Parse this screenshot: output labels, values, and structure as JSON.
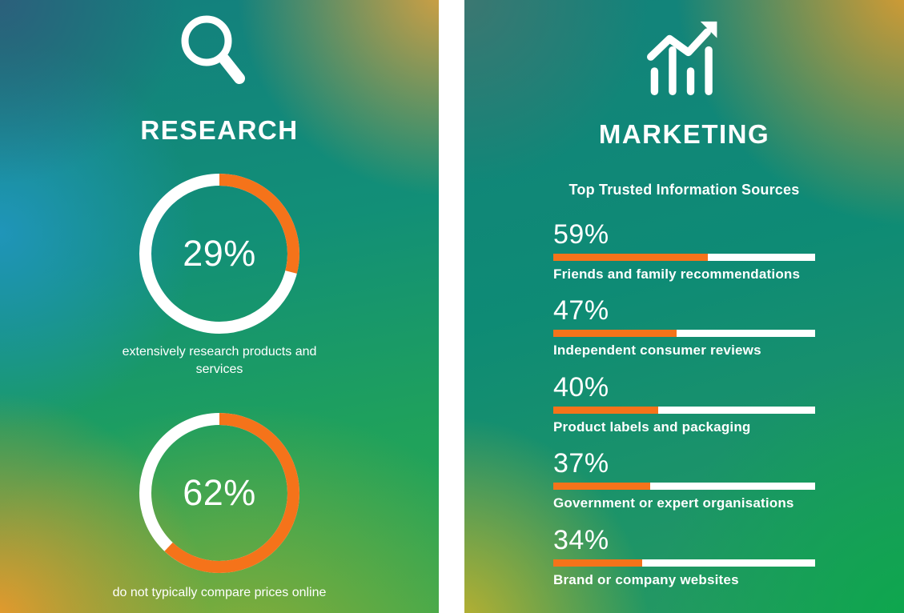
{
  "colors": {
    "orange": "#F5731A",
    "bar_track": "#FFFFFF",
    "text": "#FFFFFF"
  },
  "research_panel": {
    "icon": "magnifier-icon",
    "title": "RESEARCH",
    "donuts": [
      {
        "label": "29%",
        "value": 29,
        "caption": "extensively research products and services"
      },
      {
        "label": "62%",
        "value": 62,
        "caption": "do not typically compare prices online"
      }
    ]
  },
  "marketing_panel": {
    "icon": "trending-bar-chart-icon",
    "title": "MARKETING",
    "subtitle": "Top Trusted Information Sources",
    "bars": [
      {
        "label": "59%",
        "value": 59,
        "caption": "Friends and family recommendations"
      },
      {
        "label": "47%",
        "value": 47,
        "caption": "Independent consumer reviews"
      },
      {
        "label": "40%",
        "value": 40,
        "caption": "Product labels and packaging"
      },
      {
        "label": "37%",
        "value": 37,
        "caption": "Government or expert organisations"
      },
      {
        "label": "34%",
        "value": 34,
        "caption": "Brand or company websites"
      }
    ]
  },
  "chart_data": [
    {
      "type": "pie",
      "subtype": "donut",
      "title": "extensively research products and services",
      "center_label": "29%",
      "slices": [
        {
          "label": "29%",
          "value": 29,
          "color": "#F5731A"
        },
        {
          "label": "remainder",
          "value": 71,
          "color": "#FFFFFF"
        }
      ],
      "start_angle_deg": 0,
      "direction": "clockwise"
    },
    {
      "type": "pie",
      "subtype": "donut",
      "title": "do not typically compare prices online",
      "center_label": "62%",
      "slices": [
        {
          "label": "62%",
          "value": 62,
          "color": "#F5731A"
        },
        {
          "label": "remainder",
          "value": 38,
          "color": "#FFFFFF"
        }
      ],
      "start_angle_deg": 0,
      "direction": "clockwise"
    },
    {
      "type": "bar",
      "orientation": "horizontal",
      "title": "Top Trusted Information Sources",
      "categories": [
        "Friends and family recommendations",
        "Independent consumer reviews",
        "Product labels and packaging",
        "Government or expert organisations",
        "Brand or company websites"
      ],
      "values": [
        59,
        47,
        40,
        37,
        34
      ],
      "data_labels": [
        "59%",
        "47%",
        "40%",
        "37%",
        "34%"
      ],
      "unit": "%",
      "xlim": [
        0,
        100
      ],
      "bar_color": "#F5731A",
      "track_color": "#FFFFFF",
      "grid": false,
      "legend": false
    }
  ]
}
